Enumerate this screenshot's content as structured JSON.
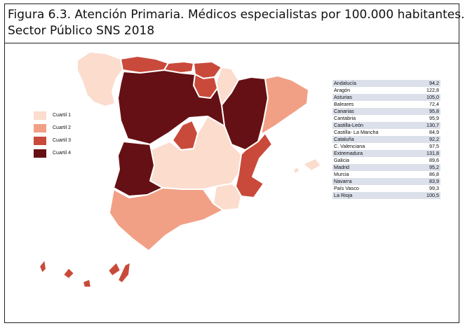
{
  "figure": {
    "title_line1": "Figura 6.3. Atención Primaria. Médicos especialistas por 100.000 habitantes.",
    "title_line2": "Sector Público SNS 2018"
  },
  "legend": [
    {
      "label": "Cuartil 1",
      "color": "#fbdccd"
    },
    {
      "label": "Cuartil 2",
      "color": "#f1a086"
    },
    {
      "label": "Cuartil 3",
      "color": "#c94a3a"
    },
    {
      "label": "Cuartil 4",
      "color": "#651014"
    }
  ],
  "map": {
    "regions": [
      {
        "name": "Galicia",
        "quartile": 1
      },
      {
        "name": "Asturias",
        "quartile": 3
      },
      {
        "name": "Cantabria",
        "quartile": 3
      },
      {
        "name": "País Vasco",
        "quartile": 3
      },
      {
        "name": "Navarra",
        "quartile": 1
      },
      {
        "name": "La Rioja",
        "quartile": 3
      },
      {
        "name": "Aragón",
        "quartile": 4
      },
      {
        "name": "Cataluña",
        "quartile": 2
      },
      {
        "name": "Castilla-León",
        "quartile": 4
      },
      {
        "name": "Madrid",
        "quartile": 3
      },
      {
        "name": "Castilla- La Mancha",
        "quartile": 1
      },
      {
        "name": "C. Valenciana",
        "quartile": 3
      },
      {
        "name": "Extremadura",
        "quartile": 4
      },
      {
        "name": "Andalucía",
        "quartile": 2
      },
      {
        "name": "Murcia",
        "quartile": 1
      },
      {
        "name": "Baleares",
        "quartile": 1
      },
      {
        "name": "Canarias",
        "quartile": 3
      }
    ]
  },
  "table": {
    "rows": [
      {
        "region": "Andalucía",
        "value": "94,2"
      },
      {
        "region": "Aragón",
        "value": "122,8"
      },
      {
        "region": "Asturias",
        "value": "105,0"
      },
      {
        "region": "Baleares",
        "value": "72,4"
      },
      {
        "region": "Canarias",
        "value": "95,8"
      },
      {
        "region": "Cantabria",
        "value": "95,9"
      },
      {
        "region": "Castilla-León",
        "value": "130,7"
      },
      {
        "region": "Castilla- La Mancha",
        "value": "84,9"
      },
      {
        "region": "Cataluña",
        "value": "92,2"
      },
      {
        "region": "C. Valenciana",
        "value": "97,5"
      },
      {
        "region": "Extremadura",
        "value": "131,8"
      },
      {
        "region": "Galicia",
        "value": "89,6"
      },
      {
        "region": "Madrid",
        "value": "95,2"
      },
      {
        "region": "Murcia",
        "value": "86,8"
      },
      {
        "region": "Navarra",
        "value": "83,9"
      },
      {
        "region": "País Vasco",
        "value": "99,3"
      },
      {
        "region": "La Rioja",
        "value": "100,5"
      }
    ]
  }
}
